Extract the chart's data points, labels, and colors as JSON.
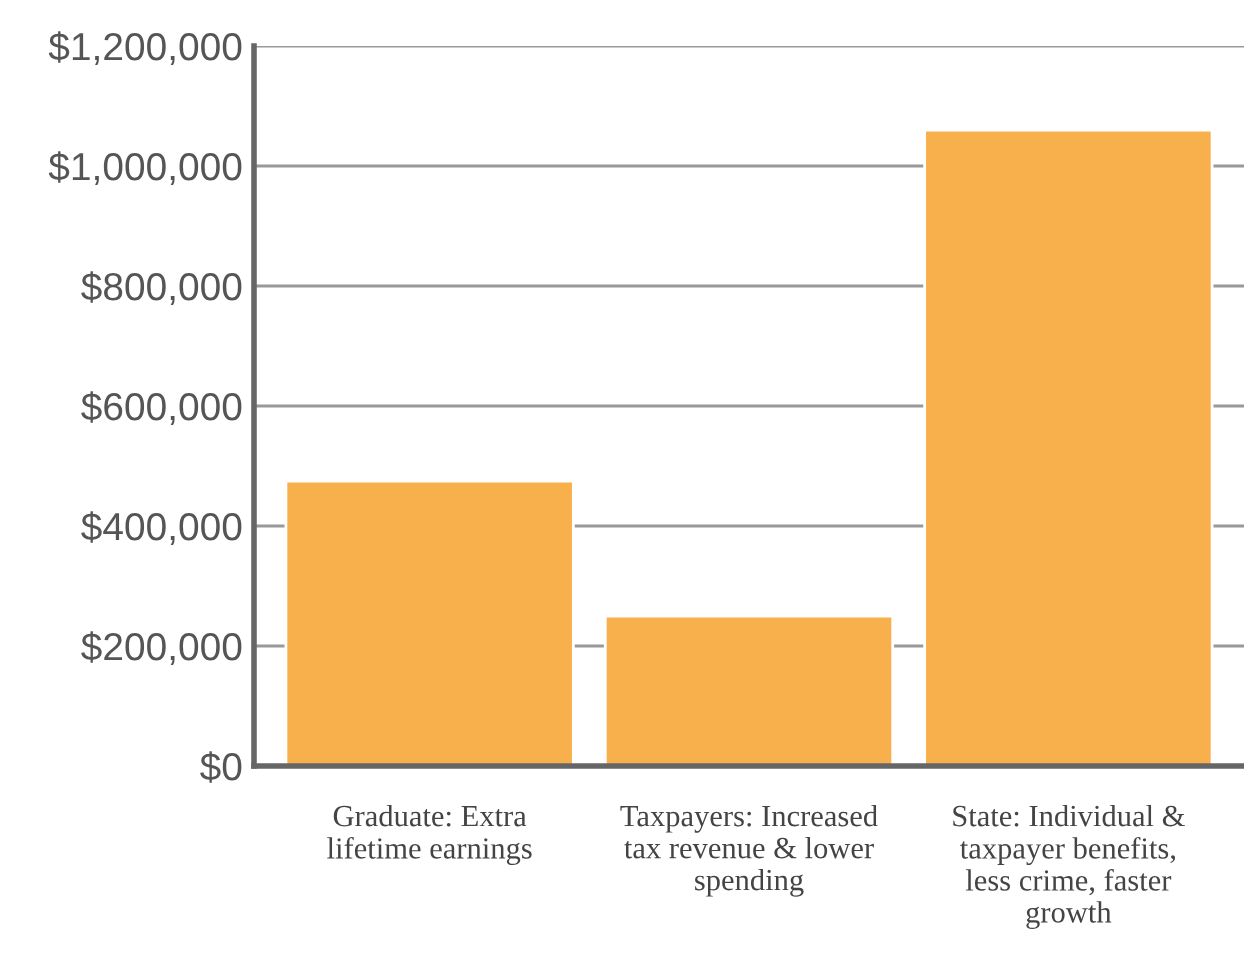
{
  "chart_data": {
    "type": "bar",
    "categories": [
      "Graduate: Extra lifetime earnings",
      "Taxpayers: Increased tax revenue & lower spending",
      "State: Individual & taxpayer benefits, less crime, faster growth"
    ],
    "values": [
      475000,
      250000,
      1060000
    ],
    "color": "#f7b04c",
    "ylim": [
      0,
      1200000
    ],
    "yticks": [
      {
        "value": 0,
        "label": "$0"
      },
      {
        "value": 200000,
        "label": "$200,000"
      },
      {
        "value": 400000,
        "label": "$400,000"
      },
      {
        "value": 600000,
        "label": "$600,000"
      },
      {
        "value": 800000,
        "label": "$800,000"
      },
      {
        "value": 1000000,
        "label": "$1,000,000"
      },
      {
        "value": 1200000,
        "label": "$1,200,000"
      }
    ],
    "grid": "y"
  }
}
